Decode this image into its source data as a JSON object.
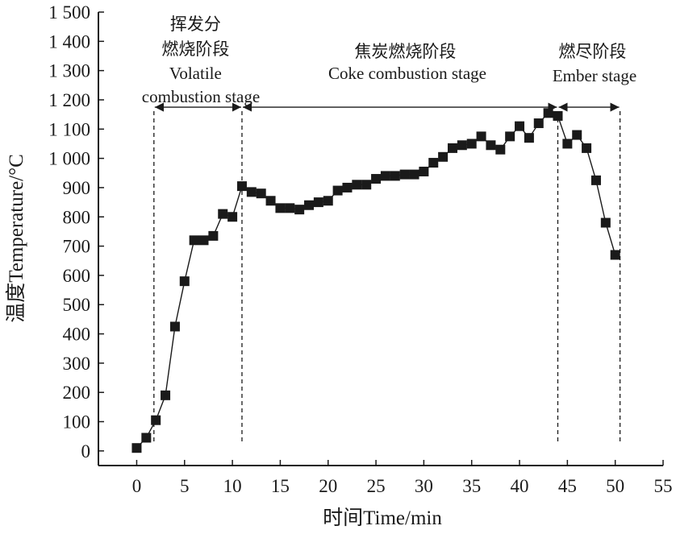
{
  "chart_data": {
    "type": "scatter",
    "xlabel": "时间Time/min",
    "ylabel": "温度Temperature/°C",
    "xlim": [
      -4,
      55
    ],
    "ylim": [
      -50,
      1500
    ],
    "xticks": [
      0,
      5,
      10,
      15,
      20,
      25,
      30,
      35,
      40,
      45,
      50,
      55
    ],
    "xtick_labels": [
      "0",
      "5",
      "10",
      "15",
      "20",
      "25",
      "30",
      "35",
      "40",
      "45",
      "50",
      "55"
    ],
    "yticks": [
      0,
      100,
      200,
      300,
      400,
      500,
      600,
      700,
      800,
      900,
      1000,
      1100,
      1200,
      1300,
      1400,
      1500
    ],
    "ytick_labels": [
      "0",
      "100",
      "200",
      "300",
      "400",
      "500",
      "600",
      "700",
      "800",
      "900",
      "1 000",
      "1 100",
      "1 200",
      "1 300",
      "1 400",
      "1 500"
    ],
    "grid": false,
    "marker": "square",
    "connected": true,
    "series": [
      {
        "x": [
          0,
          1,
          2,
          3,
          4,
          5,
          6,
          7,
          8,
          9,
          10,
          11,
          12,
          13,
          14,
          15,
          16,
          17,
          18,
          19,
          20,
          21,
          22,
          23,
          24,
          25,
          26,
          27,
          28,
          29,
          30,
          31,
          32,
          33,
          34,
          35,
          36,
          37,
          38,
          39,
          40,
          41,
          42,
          43,
          44,
          45,
          46,
          47,
          48,
          49,
          50
        ],
        "y": [
          10,
          45,
          105,
          190,
          425,
          580,
          720,
          720,
          735,
          810,
          800,
          905,
          885,
          880,
          855,
          830,
          830,
          825,
          840,
          850,
          855,
          890,
          900,
          910,
          910,
          930,
          940,
          940,
          945,
          945,
          955,
          985,
          1005,
          1035,
          1045,
          1050,
          1075,
          1045,
          1030,
          1075,
          1110,
          1070,
          1120,
          1155,
          1145,
          1050,
          1080,
          1035,
          925,
          780,
          670
        ]
      }
    ],
    "stage_lines_x": [
      1.8,
      11,
      44,
      50.5
    ],
    "stage_arrow_y": 1175,
    "annotations": [
      {
        "lines": [
          "挥发分",
          "燃烧阶段",
          "Volatile",
          "combustion stage"
        ]
      },
      {
        "lines": [
          "焦炭燃烧阶段",
          "Coke combustion stage"
        ]
      },
      {
        "lines": [
          "燃尽阶段",
          "Ember stage"
        ]
      }
    ]
  }
}
